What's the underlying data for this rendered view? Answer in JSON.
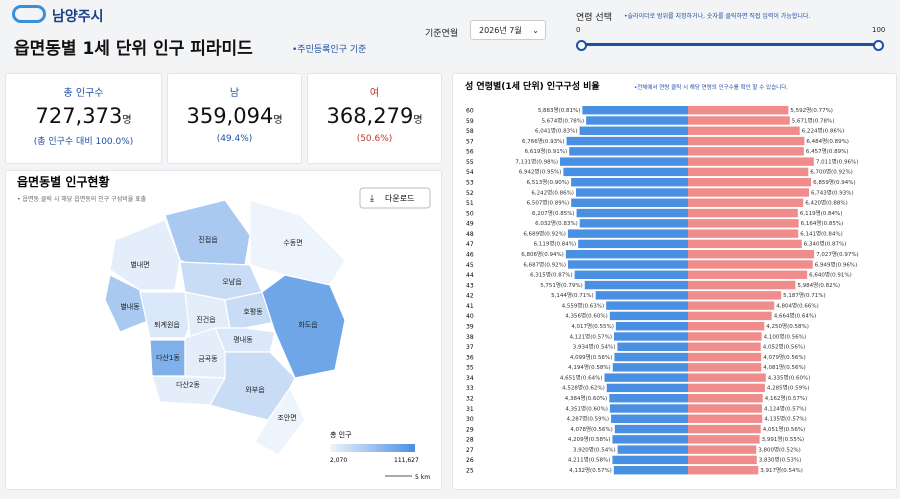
{
  "header": {
    "logo": "남양주시",
    "title": "읍면동별 1세 단위 인구 피라미드",
    "subtitle": "•주민등록인구 기준",
    "month_label": "기준연월",
    "month_value": "2026년 7월",
    "age_label": "연령 선택",
    "age_note": "•슬라이더로 범위를 지정하거나, 숫자를 클릭하면 직접 입력이 가능합니다.",
    "age_min": 0,
    "age_max": 100
  },
  "cards": [
    {
      "label": "총 인구수",
      "value": "727,373",
      "unit": "명",
      "sub": "(총 인구수 대비 100.0%)"
    },
    {
      "label": "남",
      "value": "359,094",
      "unit": "명",
      "sub": "(49.4%)"
    },
    {
      "label": "여",
      "value": "368,279",
      "unit": "명",
      "sub": "(50.6%)"
    }
  ],
  "map": {
    "title": "읍면동별 인구현황",
    "note": "• 읍면동 클릭 시 해당 읍면동의 인구 구성비율 표출",
    "download": "다운로드",
    "regions": [
      "진접읍",
      "수동면",
      "별내면",
      "오남읍",
      "별내동",
      "퇴계원읍",
      "진건읍",
      "호평동",
      "화도읍",
      "평내동",
      "다산1동",
      "금곡동",
      "다산2동",
      "와부읍",
      "조안면"
    ],
    "legend_title": "총 인구",
    "legend_min": "2,070",
    "legend_max": "111,627",
    "scale": "5 km"
  },
  "chart_data": {
    "type": "pyramid",
    "title": "성 연령별(1세 단위) 인구구성 비율",
    "note": "•전체에서 연령 클릭 시 해당 연령의 인구수를 확인 할 수 있습니다.",
    "categories": [
      "60",
      "59",
      "58",
      "57",
      "56",
      "55",
      "54",
      "53",
      "52",
      "51",
      "50",
      "49",
      "48",
      "47",
      "46",
      "45",
      "44",
      "43",
      "42",
      "41",
      "40",
      "39",
      "38",
      "37",
      "36",
      "35",
      "34",
      "33",
      "32",
      "31",
      "30",
      "29",
      "28",
      "27",
      "26",
      "25"
    ],
    "series": [
      {
        "color": "#4a90e2",
        "values": [
          5883,
          5674,
          6041,
          6766,
          6619,
          7131,
          6942,
          6513,
          6242,
          6507,
          6207,
          6032,
          6689,
          6119,
          6806,
          6687,
          6315,
          5751,
          5144,
          4559,
          4356,
          4017,
          4121,
          3934,
          4099,
          4194,
          4651,
          4528,
          4384,
          4351,
          4287,
          4078,
          4209,
          3920,
          4211,
          4132
        ],
        "value_labels": [
          "5,883명(0.81%)",
          "5,674명(0.78%)",
          "6,041명(0.83%)",
          "6,766명(0.93%)",
          "6,619명(0.91%)",
          "7,131명(0.98%)",
          "6,942명(0.95%)",
          "6,513명(0.90%)",
          "6,242명(0.86%)",
          "6,507명(0.89%)",
          "6,207명(0.85%)",
          "6,032명(0.83%)",
          "6,689명(0.92%)",
          "6,119명(0.84%)",
          "6,806명(0.94%)",
          "6,687명(0.92%)",
          "6,315명(0.87%)",
          "5,751명(0.79%)",
          "5,144명(0.71%)",
          "4,559명(0.63%)",
          "4,356명(0.60%)",
          "4,017명(0.55%)",
          "4,121명(0.57%)",
          "3,934명(0.54%)",
          "4,099명(0.56%)",
          "4,194명(0.58%)",
          "4,651명(0.64%)",
          "4,528명(0.62%)",
          "4,384명(0.60%)",
          "4,351명(0.60%)",
          "4,287명(0.59%)",
          "4,078명(0.56%)",
          "4,209명(0.58%)",
          "3,920명(0.54%)",
          "4,211명(0.58%)",
          "4,132명(0.57%)"
        ]
      },
      {
        "color": "#f08c8c",
        "values": [
          5592,
          5671,
          6224,
          6484,
          6457,
          7011,
          6700,
          6859,
          6743,
          6420,
          6119,
          6164,
          6141,
          6340,
          7027,
          6949,
          6640,
          5984,
          5187,
          4804,
          4664,
          4250,
          4100,
          4052,
          4079,
          4081,
          4335,
          4285,
          4162,
          4124,
          4135,
          4051,
          3991,
          3800,
          3830,
          3917
        ],
        "value_labels": [
          "5,592명(0.77%)",
          "5,671명(0.78%)",
          "6,224명(0.86%)",
          "6,484명(0.89%)",
          "6,457명(0.89%)",
          "7,011명(0.96%)",
          "6,700명(0.92%)",
          "6,859명(0.94%)",
          "6,743명(0.93%)",
          "6,420명(0.88%)",
          "6,119명(0.84%)",
          "6,164명(0.85%)",
          "6,141명(0.84%)",
          "6,340명(0.87%)",
          "7,027명(0.97%)",
          "6,949명(0.96%)",
          "6,640명(0.91%)",
          "5,984명(0.82%)",
          "5,187명(0.71%)",
          "4,804명(0.66%)",
          "4,664명(0.64%)",
          "4,250명(0.58%)",
          "4,100명(0.56%)",
          "4,052명(0.56%)",
          "4,079명(0.56%)",
          "4,081명(0.56%)",
          "4,335명(0.60%)",
          "4,285명(0.59%)",
          "4,162명(0.57%)",
          "4,124명(0.57%)",
          "4,135명(0.57%)",
          "4,051명(0.56%)",
          "3,991명(0.55%)",
          "3,800명(0.52%)",
          "3,830명(0.53%)",
          "3,917명(0.54%)"
        ]
      }
    ]
  }
}
